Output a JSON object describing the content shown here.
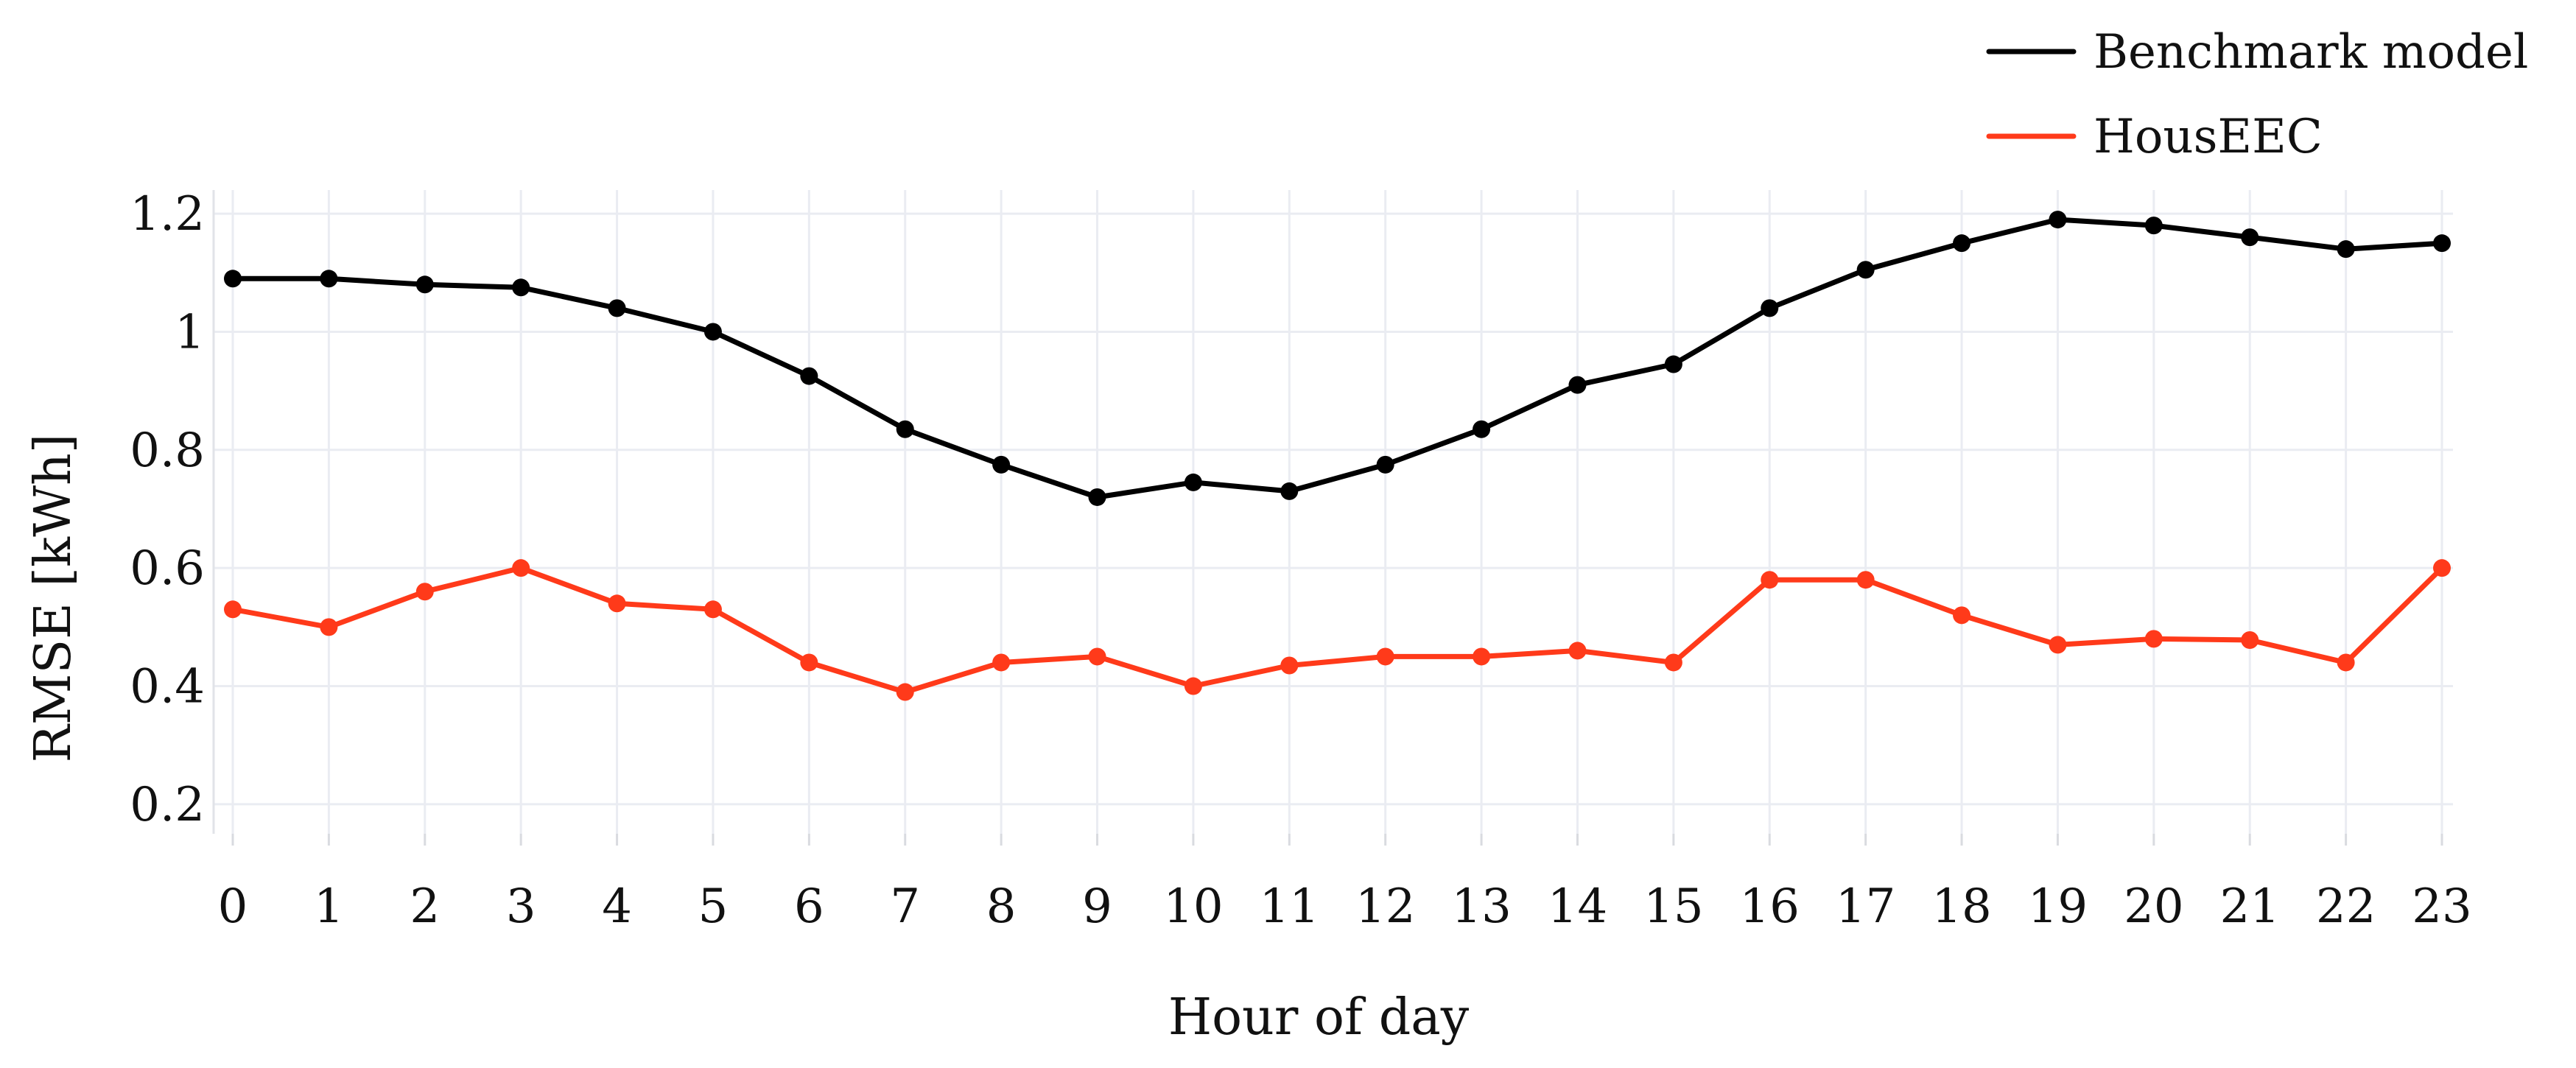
{
  "chart_data": {
    "type": "line",
    "title": "",
    "xlabel": "Hour of day",
    "ylabel": "RMSE [kWh]",
    "x": [
      0,
      1,
      2,
      3,
      4,
      5,
      6,
      7,
      8,
      9,
      10,
      11,
      12,
      13,
      14,
      15,
      16,
      17,
      18,
      19,
      20,
      21,
      22,
      23
    ],
    "x_tick_labels": [
      "0",
      "1",
      "2",
      "3",
      "4",
      "5",
      "6",
      "7",
      "8",
      "9",
      "10",
      "11",
      "12",
      "13",
      "14",
      "15",
      "16",
      "17",
      "18",
      "19",
      "20",
      "21",
      "22",
      "23"
    ],
    "y_ticks": [
      0.2,
      0.4,
      0.6,
      0.8,
      1,
      1.2
    ],
    "y_tick_labels": [
      "0.2",
      "0.4",
      "0.6",
      "0.8",
      "1",
      "1.2"
    ],
    "xlim": [
      0,
      23
    ],
    "ylim": [
      0.15,
      1.24
    ],
    "grid": true,
    "legend_position": "top-right",
    "series": [
      {
        "name": "Benchmark model",
        "color": "#000000",
        "values": [
          1.09,
          1.09,
          1.08,
          1.075,
          1.04,
          1.0,
          0.925,
          0.835,
          0.775,
          0.72,
          0.745,
          0.73,
          0.775,
          0.835,
          0.91,
          0.945,
          1.04,
          1.105,
          1.15,
          1.19,
          1.18,
          1.16,
          1.14,
          1.15
        ]
      },
      {
        "name": "HousEEC",
        "color": "#ff3a1a",
        "values": [
          0.53,
          0.5,
          0.56,
          0.6,
          0.54,
          0.53,
          0.44,
          0.39,
          0.44,
          0.45,
          0.4,
          0.435,
          0.45,
          0.45,
          0.46,
          0.44,
          0.58,
          0.58,
          0.52,
          0.47,
          0.48,
          0.478,
          0.44,
          0.6
        ]
      }
    ]
  }
}
